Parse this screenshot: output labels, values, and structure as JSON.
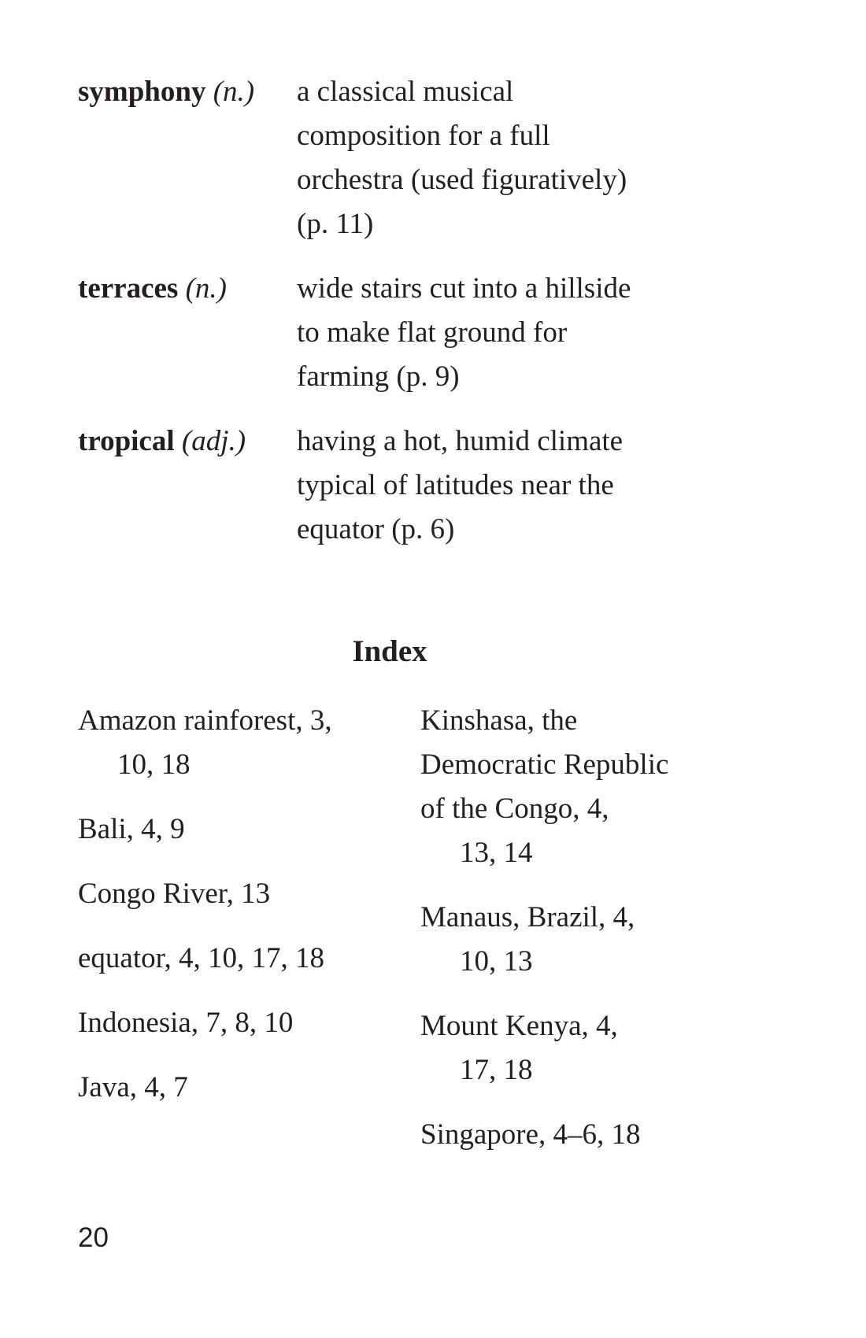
{
  "glossary": [
    {
      "term": "symphony",
      "pos": "(n.)",
      "definition_lines": [
        "a classical musical",
        "composition for a full",
        "orchestra (used figuratively)",
        "(p. 11)"
      ]
    },
    {
      "term": "terraces",
      "pos": "(n.)",
      "definition_lines": [
        "wide stairs cut into a hillside",
        "to make flat ground for",
        "farming (p. 9)"
      ]
    },
    {
      "term": "tropical",
      "pos": "(adj.)",
      "definition_lines": [
        "having a hot, humid climate",
        "typical of latitudes near the",
        "equator (p. 6)"
      ]
    }
  ],
  "index": {
    "title": "Index",
    "left_column": [
      {
        "lines": [
          "Amazon rainforest,  3,",
          "10, 18"
        ]
      },
      {
        "lines": [
          "Bali,  4, 9"
        ]
      },
      {
        "lines": [
          "Congo River,  13"
        ]
      },
      {
        "lines": [
          "equator,  4, 10, 17, 18"
        ]
      },
      {
        "lines": [
          "Indonesia,  7, 8, 10"
        ]
      },
      {
        "lines": [
          "Java,  4, 7"
        ]
      }
    ],
    "right_column": [
      {
        "lines": [
          "Kinshasa, the",
          "Democratic Republic",
          "of the Congo,  4,",
          "13, 14"
        ]
      },
      {
        "lines": [
          "Manaus, Brazil,  4,",
          "10, 13"
        ]
      },
      {
        "lines": [
          "Mount Kenya,  4,",
          "17, 18"
        ]
      },
      {
        "lines": [
          "Singapore,  4–6, 18"
        ]
      }
    ]
  },
  "page_number": "20"
}
